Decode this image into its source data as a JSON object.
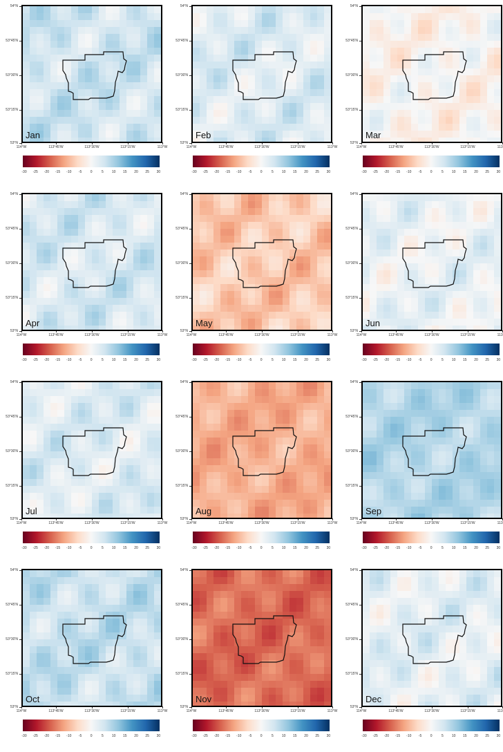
{
  "y_ticks": [
    "54°N",
    "53°45'N",
    "53°30'N",
    "53°15'N",
    "53°N"
  ],
  "x_ticks": [
    "114°W",
    "113°45'W",
    "113°30'W",
    "113°15'W",
    "113°W"
  ],
  "colorbar": {
    "ticks": [
      "-30",
      "-25",
      "-20",
      "-15",
      "-10",
      "-5",
      "0",
      "5",
      "10",
      "15",
      "20",
      "25",
      "30"
    ],
    "range": [
      -30,
      30
    ],
    "colors": [
      "#67001f",
      "#b2182b",
      "#d6604d",
      "#f4a582",
      "#fddbc7",
      "#f7f7f7",
      "#d1e5f0",
      "#92c5de",
      "#4393c3",
      "#2166ac",
      "#053061"
    ]
  },
  "panels": [
    {
      "month": "Jan",
      "base": 6
    },
    {
      "month": "Feb",
      "base": 4
    },
    {
      "month": "Mar",
      "base": -1
    },
    {
      "month": "Apr",
      "base": 5
    },
    {
      "month": "May",
      "base": -8
    },
    {
      "month": "Jun",
      "base": 2
    },
    {
      "month": "Jul",
      "base": 4
    },
    {
      "month": "Aug",
      "base": -11
    },
    {
      "month": "Sep",
      "base": 9
    },
    {
      "month": "Oct",
      "base": 7
    },
    {
      "month": "Nov",
      "base": -17
    },
    {
      "month": "Dec",
      "base": 3
    }
  ]
}
